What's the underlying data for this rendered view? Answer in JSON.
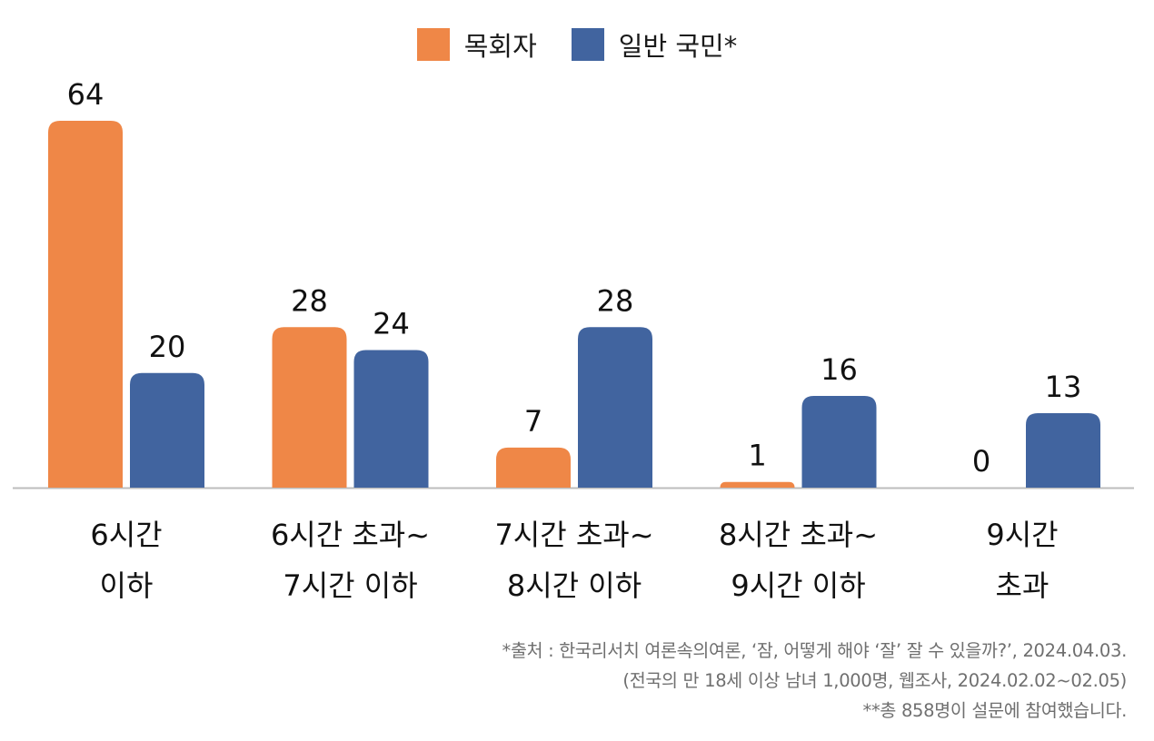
{
  "colors": {
    "orange": "#ef8747",
    "blue": "#41649f",
    "axis": "#bdbdbd"
  },
  "legend": [
    {
      "label": "목회자",
      "color": "#ef8747"
    },
    {
      "label": "일반 국민*",
      "color": "#41649f"
    }
  ],
  "chart_data": {
    "type": "bar",
    "categories": [
      [
        "6시간",
        "이하"
      ],
      [
        "6시간 초과~",
        "7시간 이하"
      ],
      [
        "7시간 초과~",
        "8시간 이하"
      ],
      [
        "8시간 초과~",
        "9시간 이하"
      ],
      [
        "9시간",
        "초과"
      ]
    ],
    "series": [
      {
        "name": "목회자",
        "values": [
          64,
          28,
          7,
          1,
          0
        ]
      },
      {
        "name": "일반 국민*",
        "values": [
          20,
          24,
          28,
          16,
          13
        ]
      }
    ],
    "ylim": [
      0,
      64
    ],
    "grid": false,
    "legend_position": "top-center",
    "data_labels": true
  },
  "source": {
    "line1": "*출처 : 한국리서치 여론속의여론, ‘잠, 어떻게 해야 ‘잘’ 잘 수 있을까?’, 2024.04.03.",
    "line2": "(전국의 만 18세 이상 남녀 1,000명, 웹조사, 2024.02.02~02.05)",
    "line3": "**총 858명이 설문에 참여했습니다."
  }
}
